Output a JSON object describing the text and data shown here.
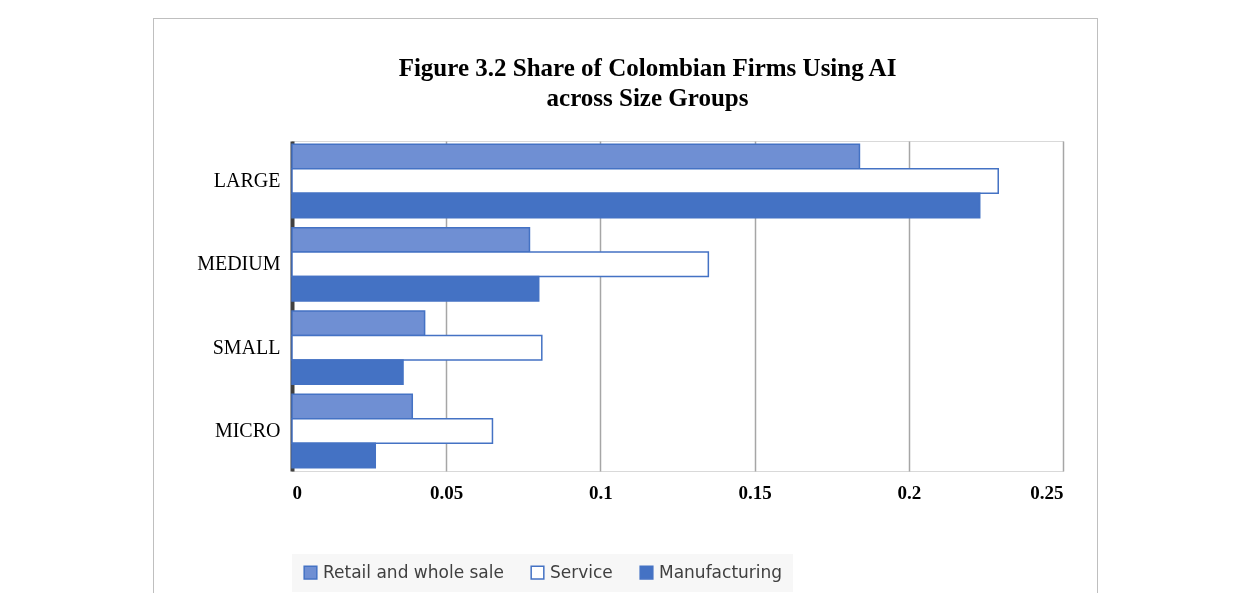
{
  "chart_data": {
    "type": "bar",
    "orientation": "horizontal",
    "title": "Figure 3.2 Share of Colombian Firms Using AI\nacross Size Groups",
    "categories": [
      "LARGE",
      "MEDIUM",
      "SMALL",
      "MICRO"
    ],
    "series": [
      {
        "name": "Retail and whole sale",
        "color": "#6f8fd3",
        "values": [
          0.184,
          0.077,
          0.043,
          0.039
        ]
      },
      {
        "name": "Service",
        "color": "#ffffff",
        "values": [
          0.229,
          0.135,
          0.081,
          0.065
        ]
      },
      {
        "name": "Manufacturing",
        "color": "#4472c4",
        "values": [
          0.223,
          0.08,
          0.036,
          0.027
        ]
      }
    ],
    "xlim": [
      0,
      0.25
    ],
    "xticks": [
      0,
      0.05,
      0.1,
      0.15,
      0.2,
      0.25
    ],
    "grid": "x",
    "legend": "bottom"
  }
}
